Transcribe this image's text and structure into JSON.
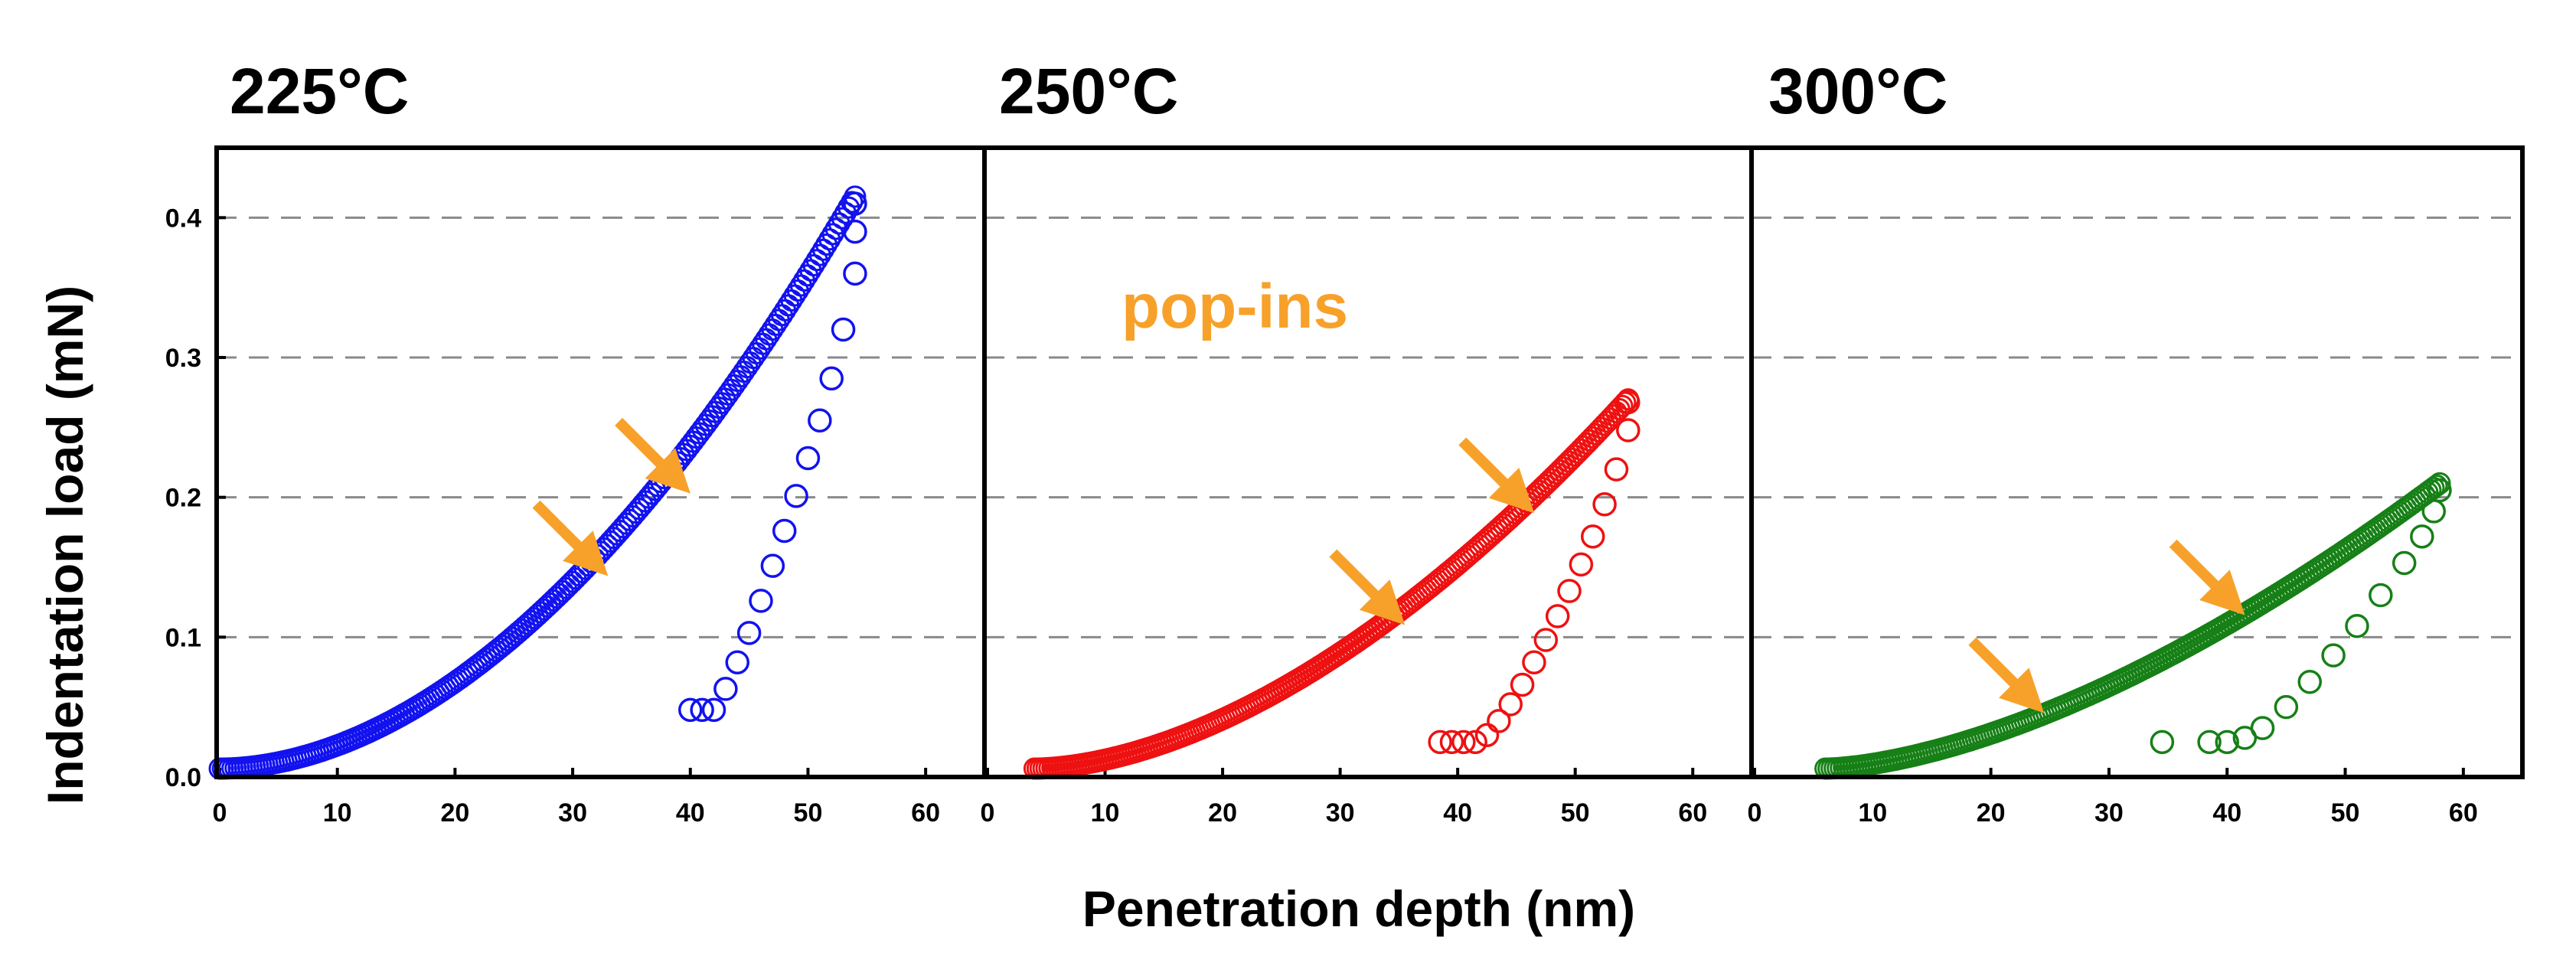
{
  "chart_data": {
    "type": "scatter",
    "ylabel": "Indentation load (mN)",
    "xlabel": "Penetration depth (nm)",
    "annotation": "pop-ins",
    "xlim": [
      0,
      65
    ],
    "ylim": [
      0,
      0.45
    ],
    "xticks": [
      0,
      10,
      20,
      30,
      40,
      50,
      60
    ],
    "xtick_labels": [
      "0",
      "10",
      "20",
      "30",
      "40",
      "50",
      "60"
    ],
    "yticks": [
      0,
      0.1,
      0.2,
      0.3,
      0.4
    ],
    "ytick_labels": [
      "0.0",
      "0.1",
      "0.2",
      "0.3",
      "0.4"
    ],
    "gridlines_y": [
      0.1,
      0.2,
      0.3,
      0.4
    ],
    "arrow_color": "#F7A12A",
    "panels": [
      {
        "title": "225°C",
        "color": "#1212F0",
        "loading": {
          "d0": 0,
          "d_max": 54,
          "p_max": 0.415,
          "exponent": 1.9
        },
        "unloading": {
          "x": [
            40,
            41,
            42,
            43,
            44,
            45,
            46,
            47,
            48,
            49,
            50,
            51,
            52,
            53,
            54,
            54,
            54
          ],
          "y": [
            0.048,
            0.048,
            0.048,
            0.063,
            0.082,
            0.103,
            0.126,
            0.151,
            0.176,
            0.201,
            0.228,
            0.255,
            0.285,
            0.32,
            0.36,
            0.39,
            0.41
          ]
        },
        "popins": [
          {
            "x": 32.5,
            "y": 0.148
          },
          {
            "x": 39.5,
            "y": 0.207
          }
        ]
      },
      {
        "title": "250°C",
        "color": "#EE1111",
        "loading": {
          "d0": 4,
          "d_max": 54.5,
          "p_max": 0.27,
          "exponent": 1.75
        },
        "unloading": {
          "x": [
            38.5,
            39.5,
            40.5,
            41.5,
            42.5,
            43.5,
            44.5,
            45.5,
            46.5,
            47.5,
            48.5,
            49.5,
            50.5,
            51.5,
            52.5,
            53.5,
            54.5,
            54.5
          ],
          "y": [
            0.025,
            0.025,
            0.025,
            0.025,
            0.03,
            0.04,
            0.052,
            0.066,
            0.082,
            0.098,
            0.115,
            0.133,
            0.152,
            0.172,
            0.195,
            0.22,
            0.248,
            0.268
          ]
        },
        "popins": [
          {
            "x": 35,
            "y": 0.113
          },
          {
            "x": 46,
            "y": 0.193
          }
        ]
      },
      {
        "title": "300°C",
        "color": "#168016",
        "loading": {
          "d0": 6,
          "d_max": 58,
          "p_max": 0.21,
          "exponent": 1.6
        },
        "unloading": {
          "x": [
            34.5,
            38.5,
            40,
            41.5,
            43,
            45,
            47,
            49,
            51,
            53,
            55,
            56.5,
            57.5,
            58
          ],
          "y": [
            0.025,
            0.025,
            0.025,
            0.028,
            0.035,
            0.05,
            0.068,
            0.087,
            0.108,
            0.13,
            0.153,
            0.172,
            0.19,
            0.205
          ]
        },
        "popins": [
          {
            "x": 24,
            "y": 0.05
          },
          {
            "x": 41,
            "y": 0.12
          }
        ]
      }
    ]
  }
}
